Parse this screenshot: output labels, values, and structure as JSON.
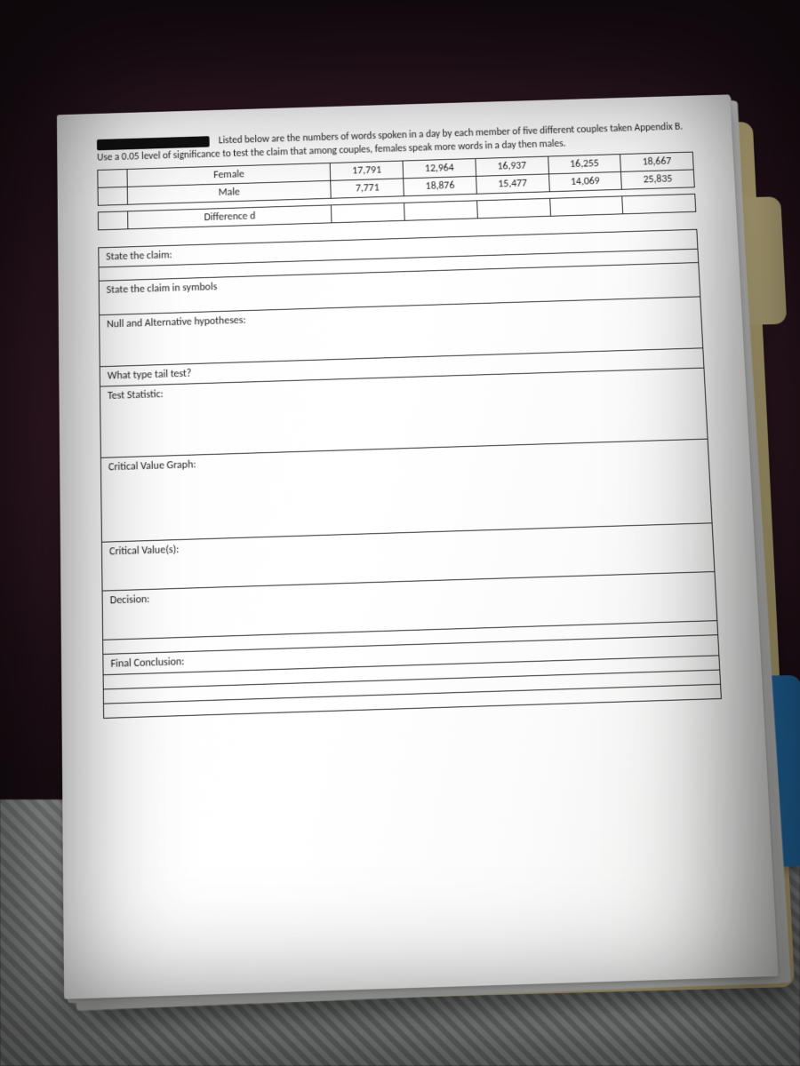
{
  "problem": {
    "intro_prefix": "Listed below are the numbers of words spoken in a day by each member of five different couples taken Appendix B.  Use a 0.05 level of significance to test the claim that among couples, females speak more words in a day then males."
  },
  "data_table": {
    "row_labels": {
      "female": "Female",
      "male": "Male",
      "difference": "Difference d"
    },
    "female": [
      "17,791",
      "12,964",
      "16,937",
      "16,255",
      "18,667"
    ],
    "male": [
      "7,771",
      "18,876",
      "15,477",
      "14,069",
      "25,835"
    ],
    "difference": [
      "",
      "",
      "",
      "",
      ""
    ]
  },
  "form": {
    "state_claim": "State the claim:",
    "state_claim_symbols": "State the claim in symbols",
    "null_alt": "Null and Alternative hypotheses:",
    "tail_test": "What type tail test?",
    "test_statistic": "Test Statistic:",
    "cv_graph": "Critical Value Graph:",
    "cv_values": "Critical Value(s):",
    "decision": "Decision:",
    "final": "Final Conclusion:"
  },
  "style": {
    "border_color": "#2b2b2b",
    "paper_bg": "#ffffff",
    "folder_bg": "#e6d49a",
    "blue_tab": "#2f8bd6",
    "font_size_body": 12,
    "font_size_intro": 11.5
  }
}
